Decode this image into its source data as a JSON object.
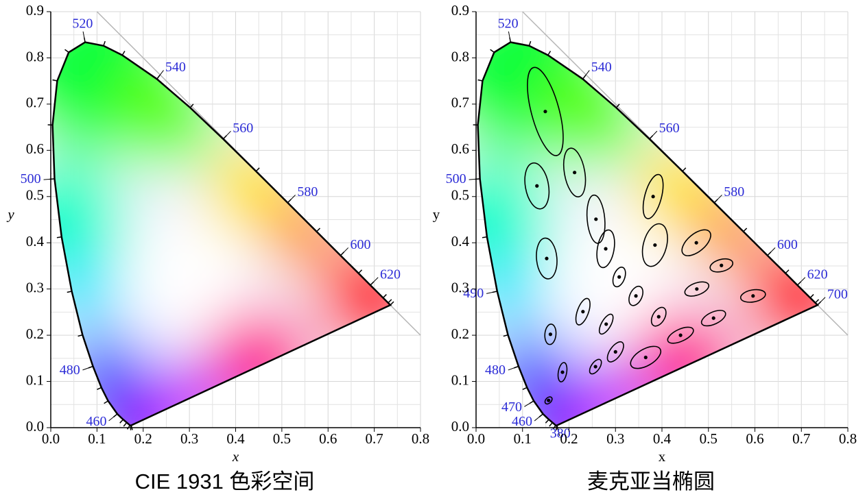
{
  "chart_data": [
    {
      "type": "chromaticity",
      "caption": "CIE 1931 色彩空间",
      "xlabel": "x",
      "ylabel": "y",
      "italic_labels": true,
      "xlim": [
        0,
        0.8
      ],
      "ylim": [
        0,
        0.9
      ],
      "xticks": [
        {
          "value": 0,
          "label": "0.0"
        },
        0.1,
        0.2,
        0.3,
        0.4,
        0.5,
        0.6,
        0.7,
        0.8
      ],
      "yticks": [
        {
          "value": 0,
          "label": "0.0"
        },
        0.1,
        0.2,
        0.3,
        0.4,
        0.5,
        0.6,
        0.7,
        0.8,
        0.9
      ],
      "grid": true,
      "label_color": "#2b2bd6",
      "locus": {
        "wavelengths": [
          380,
          400,
          420,
          440,
          450,
          460,
          470,
          475,
          480,
          485,
          490,
          495,
          500,
          505,
          510,
          515,
          520,
          525,
          530,
          540,
          550,
          560,
          570,
          580,
          590,
          600,
          610,
          620,
          640,
          660,
          700
        ],
        "x": [
          0.1741,
          0.1733,
          0.1714,
          0.1644,
          0.1566,
          0.144,
          0.1241,
          0.1096,
          0.0913,
          0.0687,
          0.0454,
          0.0235,
          0.0082,
          0.0039,
          0.0139,
          0.0389,
          0.0743,
          0.1142,
          0.1547,
          0.2296,
          0.3016,
          0.3731,
          0.4441,
          0.5125,
          0.5752,
          0.627,
          0.6658,
          0.6915,
          0.719,
          0.73,
          0.7347
        ],
        "y": [
          0.005,
          0.0048,
          0.0051,
          0.0109,
          0.0177,
          0.0297,
          0.0578,
          0.0868,
          0.1327,
          0.2007,
          0.295,
          0.4127,
          0.5384,
          0.6548,
          0.7502,
          0.812,
          0.8338,
          0.8262,
          0.8059,
          0.7543,
          0.6923,
          0.6245,
          0.5547,
          0.4866,
          0.4242,
          0.3725,
          0.334,
          0.3083,
          0.2809,
          0.27,
          0.2653
        ]
      },
      "labels": [
        460,
        480,
        500,
        520,
        540,
        560,
        580,
        600,
        620
      ]
    },
    {
      "type": "chromaticity",
      "caption": "麦克亚当椭圆",
      "xlabel": "x",
      "ylabel": "y",
      "italic_labels": false,
      "xlim": [
        0,
        0.8
      ],
      "ylim": [
        0,
        0.9
      ],
      "xticks": [
        {
          "value": 0,
          "label": "0.0"
        },
        0.1,
        0.2,
        0.3,
        0.4,
        0.5,
        0.6,
        0.7,
        0.8
      ],
      "yticks": [
        {
          "value": 0,
          "label": "0.0"
        },
        0.1,
        0.2,
        0.3,
        0.4,
        0.5,
        0.6,
        0.7,
        0.8,
        0.9
      ],
      "grid": true,
      "label_color": "#2b2bd6",
      "locus": {
        "wavelengths": [
          380,
          400,
          420,
          440,
          450,
          460,
          470,
          475,
          480,
          485,
          490,
          495,
          500,
          505,
          510,
          515,
          520,
          525,
          530,
          540,
          550,
          560,
          570,
          580,
          590,
          600,
          610,
          620,
          640,
          660,
          700
        ],
        "x": [
          0.1741,
          0.1733,
          0.1714,
          0.1644,
          0.1566,
          0.144,
          0.1241,
          0.1096,
          0.0913,
          0.0687,
          0.0454,
          0.0235,
          0.0082,
          0.0039,
          0.0139,
          0.0389,
          0.0743,
          0.1142,
          0.1547,
          0.2296,
          0.3016,
          0.3731,
          0.4441,
          0.5125,
          0.5752,
          0.627,
          0.6658,
          0.6915,
          0.719,
          0.73,
          0.7347
        ],
        "y": [
          0.005,
          0.0048,
          0.0051,
          0.0109,
          0.0177,
          0.0297,
          0.0578,
          0.0868,
          0.1327,
          0.2007,
          0.295,
          0.4127,
          0.5384,
          0.6548,
          0.7502,
          0.812,
          0.8338,
          0.8262,
          0.8059,
          0.7543,
          0.6923,
          0.6245,
          0.5547,
          0.4866,
          0.4242,
          0.3725,
          0.334,
          0.3083,
          0.2809,
          0.27,
          0.2653
        ]
      },
      "labels": [
        380,
        460,
        470,
        480,
        490,
        500,
        520,
        540,
        560,
        580,
        600,
        620,
        700
      ],
      "ellipses": {
        "x": [
          0.149,
          0.131,
          0.212,
          0.258,
          0.279,
          0.152,
          0.381,
          0.385,
          0.474,
          0.528,
          0.308,
          0.475,
          0.596,
          0.344,
          0.23,
          0.28,
          0.393,
          0.511,
          0.16,
          0.44,
          0.3,
          0.365,
          0.257,
          0.186,
          0.156
        ],
        "y": [
          0.684,
          0.523,
          0.552,
          0.451,
          0.387,
          0.366,
          0.5,
          0.395,
          0.4,
          0.351,
          0.326,
          0.3,
          0.285,
          0.285,
          0.251,
          0.224,
          0.24,
          0.237,
          0.202,
          0.2,
          0.164,
          0.152,
          0.132,
          0.12,
          0.059
        ],
        "a": [
          0.098,
          0.05,
          0.053,
          0.052,
          0.041,
          0.044,
          0.049,
          0.047,
          0.037,
          0.025,
          0.022,
          0.027,
          0.027,
          0.022,
          0.03,
          0.024,
          0.022,
          0.028,
          0.022,
          0.03,
          0.025,
          0.036,
          0.018,
          0.021,
          0.009
        ],
        "b": [
          0.03,
          0.025,
          0.022,
          0.019,
          0.018,
          0.022,
          0.018,
          0.025,
          0.019,
          0.013,
          0.012,
          0.013,
          0.013,
          0.013,
          0.012,
          0.01,
          0.013,
          0.013,
          0.012,
          0.013,
          0.012,
          0.018,
          0.009,
          0.009,
          0.006
        ],
        "theta": [
          105,
          100,
          100,
          95,
          80,
          95,
          75,
          75,
          40,
          15,
          70,
          20,
          10,
          65,
          70,
          60,
          60,
          25,
          85,
          25,
          55,
          30,
          55,
          80,
          45
        ]
      }
    }
  ]
}
